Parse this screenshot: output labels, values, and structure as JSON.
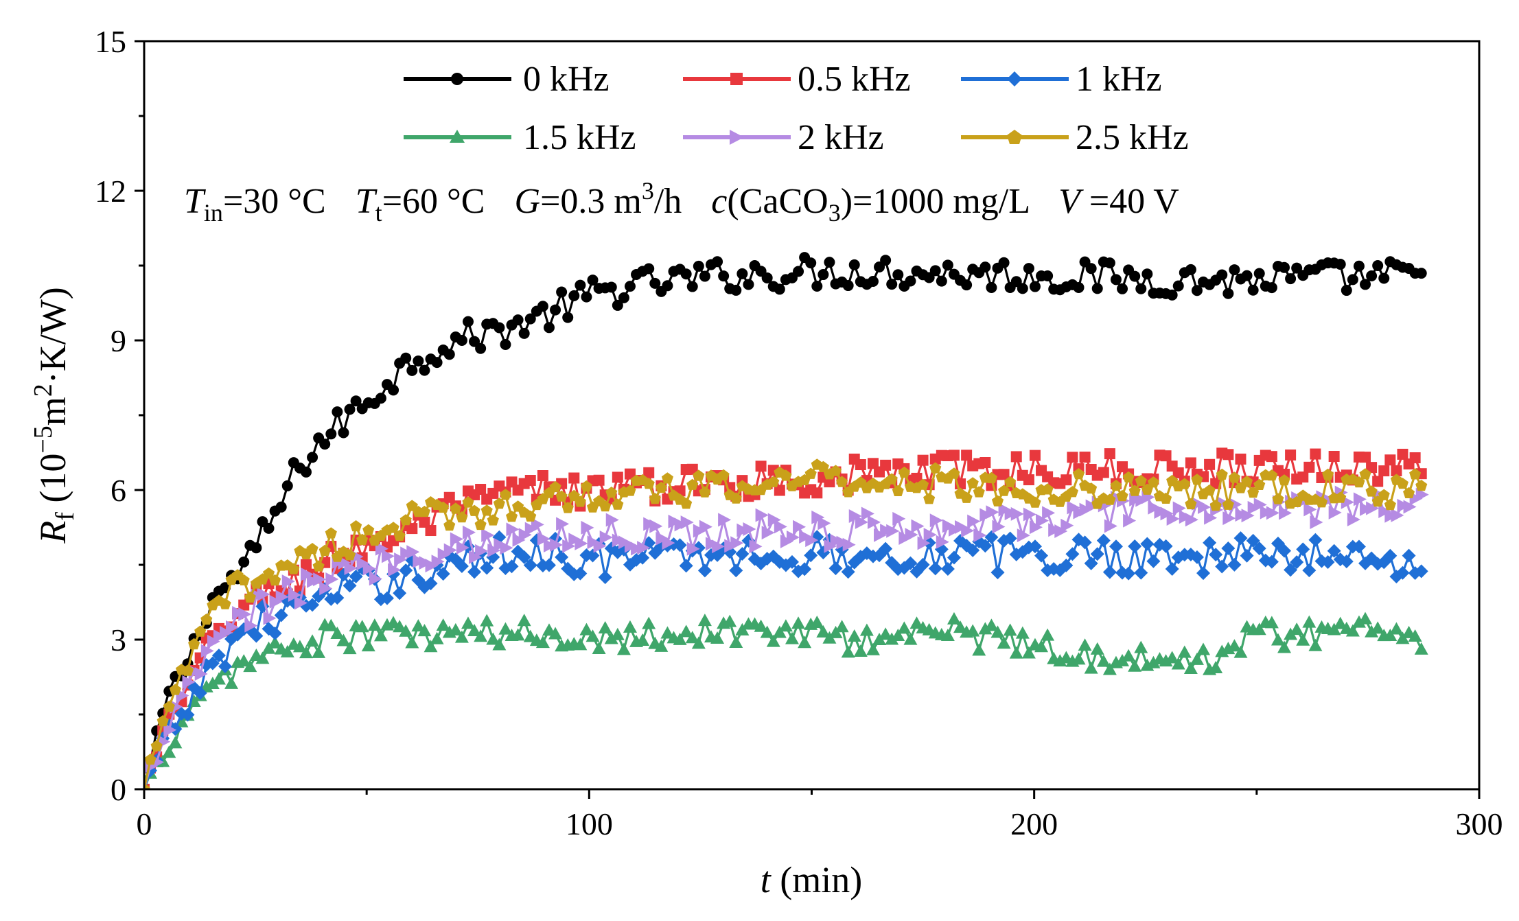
{
  "chart_data": {
    "type": "line",
    "title": "",
    "xlabel": {
      "symbol": "t",
      "rest": " (min)"
    },
    "ylabel": {
      "symbol": "R",
      "sub": "f",
      "pre": " (10",
      "sup1": "−5",
      "mid": "m",
      "sup2": "2",
      "post": "·K/W)"
    },
    "xlim": [
      0,
      300
    ],
    "ylim": [
      0,
      15
    ],
    "xticks": [
      0,
      100,
      200,
      300
    ],
    "yticks": [
      0,
      3,
      6,
      9,
      12,
      15
    ],
    "grid": false,
    "legend_position": "top",
    "conditions": [
      {
        "symbol": "T",
        "sub": "in",
        "text": "=30 °C"
      },
      {
        "symbol": "T",
        "sub": "t",
        "text": "=60 °C"
      },
      {
        "symbol": "G",
        "text": "=0.3 m",
        "sup": "3",
        "after": "/h"
      },
      {
        "symbol": "c",
        "text": "(CaCO",
        "sub": "3",
        "after": ")=1000 mg/L"
      },
      {
        "symbol": "V",
        "text": " =40 V"
      }
    ],
    "x_step_min": 1.4,
    "x_points": 206,
    "series": [
      {
        "name": "0 kHz",
        "color": "#000000",
        "marker": "circle",
        "keypoints": [
          [
            0,
            0
          ],
          [
            5,
            1.8
          ],
          [
            10,
            2.6
          ],
          [
            15,
            3.8
          ],
          [
            20,
            4.2
          ],
          [
            25,
            4.8
          ],
          [
            30,
            5.6
          ],
          [
            35,
            6.5
          ],
          [
            40,
            7.0
          ],
          [
            50,
            7.8
          ],
          [
            60,
            8.6
          ],
          [
            70,
            9.0
          ],
          [
            80,
            9.2
          ],
          [
            90,
            9.5
          ],
          [
            100,
            9.9
          ],
          [
            110,
            10.1
          ],
          [
            130,
            10.3
          ],
          [
            160,
            10.4
          ],
          [
            200,
            10.3
          ],
          [
            240,
            10.2
          ],
          [
            288,
            10.3
          ]
        ],
        "noise": 0.33
      },
      {
        "name": "0.5 kHz",
        "color": "#e8383d",
        "marker": "square",
        "keypoints": [
          [
            0,
            0
          ],
          [
            5,
            1.3
          ],
          [
            10,
            2.0
          ],
          [
            15,
            3.0
          ],
          [
            20,
            3.5
          ],
          [
            30,
            4.0
          ],
          [
            40,
            4.5
          ],
          [
            50,
            4.9
          ],
          [
            60,
            5.2
          ],
          [
            70,
            5.6
          ],
          [
            80,
            5.9
          ],
          [
            90,
            6.0
          ],
          [
            100,
            6.0
          ],
          [
            140,
            6.2
          ],
          [
            180,
            6.4
          ],
          [
            220,
            6.4
          ],
          [
            260,
            6.5
          ],
          [
            288,
            6.4
          ]
        ],
        "noise": 0.33
      },
      {
        "name": "1 kHz",
        "color": "#1f6fd6",
        "marker": "diamond",
        "keypoints": [
          [
            0,
            0
          ],
          [
            5,
            1.0
          ],
          [
            10,
            1.7
          ],
          [
            15,
            2.4
          ],
          [
            20,
            3.0
          ],
          [
            30,
            3.5
          ],
          [
            40,
            3.8
          ],
          [
            50,
            4.1
          ],
          [
            60,
            4.3
          ],
          [
            70,
            4.5
          ],
          [
            80,
            4.7
          ],
          [
            90,
            4.8
          ],
          [
            100,
            4.6
          ],
          [
            130,
            4.7
          ],
          [
            170,
            4.7
          ],
          [
            210,
            4.7
          ],
          [
            250,
            4.7
          ],
          [
            288,
            4.6
          ]
        ],
        "noise": 0.38
      },
      {
        "name": "1.5 kHz",
        "color": "#3fa66a",
        "marker": "triangle-up",
        "keypoints": [
          [
            0,
            0
          ],
          [
            5,
            0.8
          ],
          [
            10,
            1.5
          ],
          [
            15,
            2.0
          ],
          [
            20,
            2.4
          ],
          [
            30,
            2.8
          ],
          [
            40,
            3.0
          ],
          [
            50,
            3.1
          ],
          [
            80,
            3.1
          ],
          [
            110,
            3.1
          ],
          [
            140,
            3.2
          ],
          [
            160,
            3.0
          ],
          [
            180,
            3.2
          ],
          [
            200,
            2.9
          ],
          [
            220,
            2.6
          ],
          [
            235,
            2.5
          ],
          [
            250,
            3.1
          ],
          [
            270,
            3.2
          ],
          [
            288,
            3.1
          ]
        ],
        "noise": 0.3
      },
      {
        "name": "2 kHz",
        "color": "#b58be3",
        "marker": "triangle-right",
        "keypoints": [
          [
            0,
            0
          ],
          [
            5,
            1.2
          ],
          [
            10,
            2.0
          ],
          [
            15,
            2.8
          ],
          [
            20,
            3.3
          ],
          [
            30,
            3.8
          ],
          [
            40,
            4.2
          ],
          [
            50,
            4.5
          ],
          [
            60,
            4.7
          ],
          [
            70,
            4.9
          ],
          [
            80,
            5.0
          ],
          [
            90,
            5.1
          ],
          [
            110,
            5.1
          ],
          [
            140,
            5.2
          ],
          [
            170,
            5.2
          ],
          [
            200,
            5.4
          ],
          [
            230,
            5.6
          ],
          [
            260,
            5.6
          ],
          [
            288,
            5.7
          ]
        ],
        "noise": 0.33
      },
      {
        "name": "2.5 kHz",
        "color": "#c9a11a",
        "marker": "pentagon",
        "keypoints": [
          [
            0,
            0
          ],
          [
            5,
            1.6
          ],
          [
            10,
            2.5
          ],
          [
            15,
            3.5
          ],
          [
            20,
            4.0
          ],
          [
            30,
            4.4
          ],
          [
            40,
            4.8
          ],
          [
            50,
            5.1
          ],
          [
            60,
            5.4
          ],
          [
            70,
            5.5
          ],
          [
            80,
            5.7
          ],
          [
            90,
            5.8
          ],
          [
            100,
            5.9
          ],
          [
            130,
            6.0
          ],
          [
            150,
            6.3
          ],
          [
            180,
            6.1
          ],
          [
            210,
            6.0
          ],
          [
            240,
            6.0
          ],
          [
            270,
            6.0
          ],
          [
            288,
            6.0
          ]
        ],
        "noise": 0.32
      }
    ]
  }
}
